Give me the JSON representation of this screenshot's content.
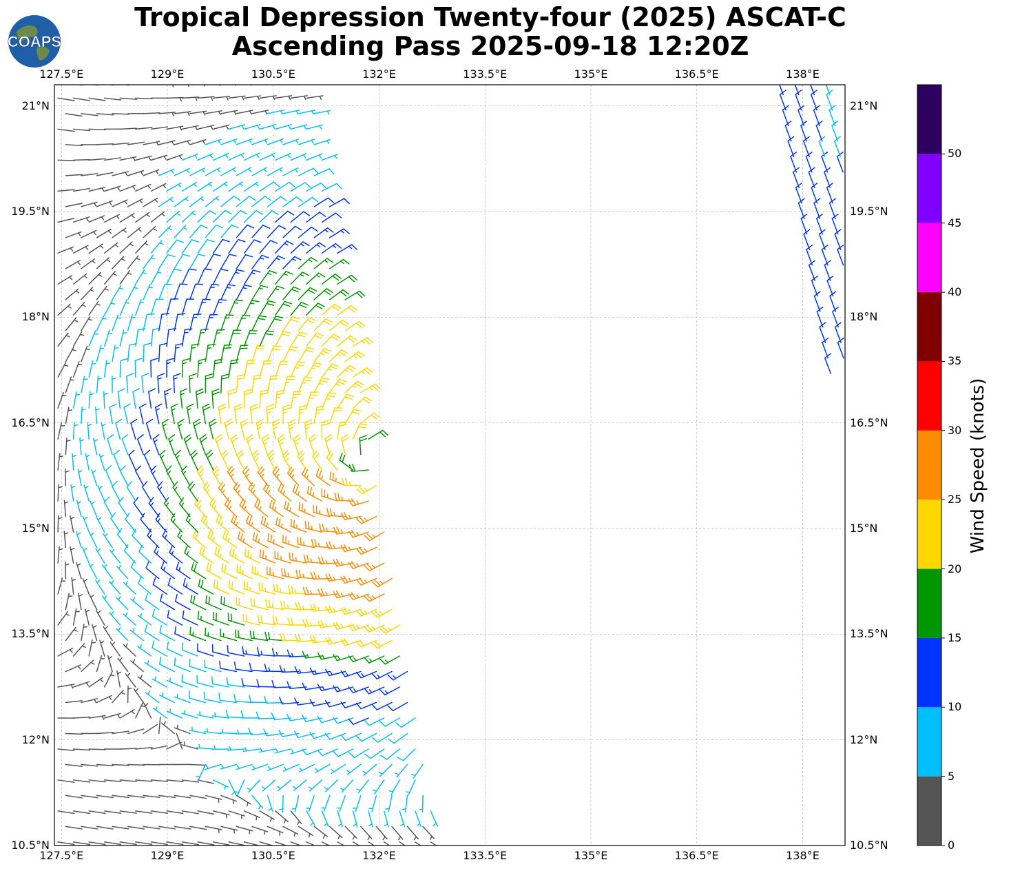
{
  "title": {
    "line1": "Tropical Depression Twenty-four (2025) ASCAT-C",
    "line2": "Ascending Pass 2025-09-18 12:20Z"
  },
  "logo": {
    "text": "COAPS",
    "icon": "globe-icon"
  },
  "map": {
    "lon_range": [
      127.4,
      138.6
    ],
    "lat_range": [
      10.5,
      21.3
    ],
    "lon_ticks": [
      "127.5°E",
      "129°E",
      "130.5°E",
      "132°E",
      "133.5°E",
      "135°E",
      "136.5°E",
      "138°E"
    ],
    "lat_ticks": [
      "21°N",
      "19.5°N",
      "18°N",
      "16.5°N",
      "15°N",
      "13.5°N",
      "12°N",
      "10.5°N"
    ],
    "storm_center": {
      "lon": 131.9,
      "lat": 16.0
    },
    "swaths": [
      {
        "name": "west-swath",
        "lon_min": 127.4,
        "lon_max": 133.0
      },
      {
        "name": "east-swath",
        "lon_min": 137.7,
        "lon_max": 138.6
      }
    ]
  },
  "colorbar": {
    "label": "Wind Speed (knots)",
    "tick_labels": [
      "0",
      "5",
      "10",
      "15",
      "20",
      "25",
      "30",
      "35",
      "40",
      "45",
      "50"
    ],
    "bins": [
      {
        "min": 0,
        "max": 5,
        "color": "#555555"
      },
      {
        "min": 5,
        "max": 10,
        "color": "#00bfff"
      },
      {
        "min": 10,
        "max": 15,
        "color": "#0033ff"
      },
      {
        "min": 15,
        "max": 20,
        "color": "#009600"
      },
      {
        "min": 20,
        "max": 25,
        "color": "#ffd700"
      },
      {
        "min": 25,
        "max": 30,
        "color": "#ff8c00"
      },
      {
        "min": 30,
        "max": 35,
        "color": "#ff0000"
      },
      {
        "min": 35,
        "max": 40,
        "color": "#800000"
      },
      {
        "min": 40,
        "max": 45,
        "color": "#ff00ff"
      },
      {
        "min": 45,
        "max": 50,
        "color": "#8000ff"
      },
      {
        "min": 50,
        "max": 55,
        "color": "#2e0060"
      }
    ]
  },
  "colors": {
    "grid": "#b0b0b0",
    "coaps_globe": "#1f5fa8",
    "coaps_land": "#6d8a4a"
  }
}
